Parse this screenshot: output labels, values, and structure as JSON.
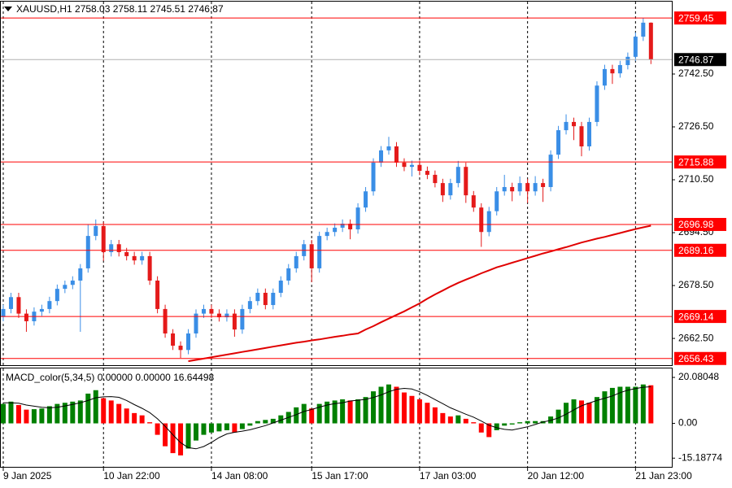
{
  "chart_data": [
    {
      "type": "candlestick",
      "title": "XAUUSD,H1 2758.03 2758.11 2745.51 2746.87",
      "categories": [
        "9 Jan 2025",
        null,
        null,
        null,
        null,
        null,
        null,
        null,
        null,
        null,
        null,
        null,
        null,
        "10 Jan 22:00",
        null,
        null,
        null,
        null,
        null,
        null,
        null,
        null,
        null,
        null,
        null,
        null,
        null,
        "14 Jan 08:00",
        null,
        null,
        null,
        null,
        null,
        null,
        null,
        null,
        null,
        null,
        null,
        null,
        "15 Jan 17:00",
        null,
        null,
        null,
        null,
        null,
        null,
        null,
        null,
        null,
        null,
        null,
        null,
        null,
        "17 Jan 03:00",
        null,
        null,
        null,
        null,
        null,
        null,
        null,
        null,
        null,
        null,
        null,
        null,
        null,
        "20 Jan 12:00",
        null,
        null,
        null,
        null,
        null,
        null,
        null,
        null,
        null,
        null,
        null,
        null,
        null,
        "21 Jan 23:00",
        null,
        null
      ],
      "open": [
        2669.0,
        2671.4,
        2675.0,
        2670.0,
        2667.7,
        2670.6,
        2671.4,
        2673.8,
        2677.5,
        2678.7,
        2680.0,
        2683.7,
        2693.5,
        2696.5,
        2688.6,
        2691.0,
        2688.6,
        2687.4,
        2686.1,
        2687.4,
        2680.0,
        2671.4,
        2664.0,
        2660.3,
        2659.0,
        2664.0,
        2670.0,
        2671.4,
        2670.0,
        2668.9,
        2670.0,
        2665.2,
        2671.4,
        2673.8,
        2676.3,
        2672.6,
        2676.3,
        2680.0,
        2683.7,
        2687.4,
        2691.0,
        2683.7,
        2693.5,
        2694.7,
        2696.0,
        2697.2,
        2695.5,
        2702.1,
        2707.0,
        2715.7,
        2719.4,
        2720.6,
        2715.7,
        2714.4,
        2715.0,
        2713.2,
        2712.0,
        2709.5,
        2705.8,
        2709.5,
        2714.4,
        2705.8,
        2702.1,
        2694.7,
        2701.0,
        2707.0,
        2708.3,
        2707.0,
        2709.5,
        2707.0,
        2709.5,
        2708.3,
        2718.1,
        2725.5,
        2728.0,
        2726.7,
        2720.6,
        2728.0,
        2739.0,
        2744.0,
        2742.7,
        2745.2,
        2747.7,
        2753.8,
        2758.03
      ],
      "high": [
        2672.7,
        2676.3,
        2676.3,
        2671.3,
        2671.9,
        2672.7,
        2675.1,
        2678.8,
        2680.0,
        2681.3,
        2685.0,
        2697.0,
        2698.5,
        2697.8,
        2692.3,
        2692.3,
        2689.9,
        2688.7,
        2688.7,
        2688.7,
        2681.3,
        2672.7,
        2665.3,
        2661.6,
        2665.3,
        2671.3,
        2672.7,
        2672.7,
        2671.3,
        2671.3,
        2671.3,
        2672.7,
        2675.1,
        2677.6,
        2677.6,
        2677.6,
        2681.3,
        2685.0,
        2688.7,
        2692.3,
        2692.3,
        2694.8,
        2696.0,
        2697.3,
        2698.5,
        2698.5,
        2703.4,
        2708.3,
        2717.0,
        2720.7,
        2723.5,
        2721.9,
        2717.0,
        2716.3,
        2716.3,
        2714.5,
        2713.3,
        2710.8,
        2710.8,
        2716.2,
        2715.7,
        2707.1,
        2703.4,
        2702.3,
        2708.3,
        2712.0,
        2709.6,
        2711.5,
        2710.8,
        2711.6,
        2710.8,
        2719.4,
        2726.8,
        2730.3,
        2729.3,
        2728.0,
        2729.3,
        2740.3,
        2745.3,
        2745.3,
        2746.5,
        2749.0,
        2755.1,
        2759.45,
        2758.11
      ],
      "low": [
        2667.7,
        2670.1,
        2668.7,
        2664.5,
        2666.4,
        2669.3,
        2670.1,
        2672.5,
        2676.2,
        2677.4,
        2664.5,
        2682.4,
        2692.2,
        2686.0,
        2687.3,
        2687.3,
        2686.1,
        2684.8,
        2684.8,
        2678.7,
        2670.1,
        2662.7,
        2659.0,
        2656.6,
        2657.7,
        2662.7,
        2668.7,
        2668.7,
        2667.6,
        2667.6,
        2663.0,
        2663.9,
        2670.1,
        2672.5,
        2671.3,
        2671.3,
        2675.0,
        2678.7,
        2682.4,
        2686.1,
        2679.5,
        2682.4,
        2692.2,
        2693.4,
        2694.7,
        2692.5,
        2694.2,
        2700.8,
        2705.7,
        2714.4,
        2718.1,
        2714.4,
        2713.1,
        2711.5,
        2711.9,
        2710.7,
        2708.2,
        2703.8,
        2704.5,
        2708.2,
        2703.5,
        2700.8,
        2690.2,
        2693.4,
        2699.7,
        2705.7,
        2704.0,
        2705.7,
        2703.5,
        2705.7,
        2703.8,
        2707.0,
        2716.8,
        2724.2,
        2722.5,
        2717.6,
        2719.3,
        2726.7,
        2737.7,
        2739.5,
        2741.4,
        2743.9,
        2746.4,
        2752.5,
        2745.51
      ],
      "close": [
        2671.4,
        2675.0,
        2670.0,
        2667.7,
        2670.6,
        2671.4,
        2673.8,
        2677.5,
        2678.7,
        2680.0,
        2683.7,
        2693.5,
        2696.5,
        2688.6,
        2691.0,
        2688.6,
        2687.4,
        2686.1,
        2687.4,
        2680.0,
        2671.4,
        2664.0,
        2660.3,
        2659.0,
        2664.0,
        2670.0,
        2671.4,
        2670.0,
        2668.9,
        2670.0,
        2665.2,
        2671.4,
        2673.8,
        2676.3,
        2672.6,
        2676.3,
        2680.0,
        2683.7,
        2687.4,
        2691.0,
        2683.7,
        2693.5,
        2694.7,
        2696.0,
        2697.2,
        2695.5,
        2702.1,
        2707.0,
        2715.7,
        2719.4,
        2720.6,
        2715.7,
        2714.4,
        2715.0,
        2713.2,
        2712.0,
        2709.5,
        2705.8,
        2709.5,
        2714.4,
        2705.8,
        2702.1,
        2694.7,
        2701.0,
        2707.0,
        2708.3,
        2707.0,
        2709.5,
        2707.0,
        2709.5,
        2708.3,
        2718.1,
        2725.5,
        2728.0,
        2726.7,
        2720.6,
        2728.0,
        2739.0,
        2744.0,
        2742.7,
        2745.2,
        2747.7,
        2753.8,
        2758.03,
        2746.87
      ],
      "up_color": "#3a8ee6",
      "down_color": "#e41a1a",
      "ma": {
        "color": "#e00000",
        "values": [
          null,
          null,
          null,
          null,
          null,
          null,
          null,
          null,
          null,
          null,
          null,
          null,
          null,
          null,
          null,
          null,
          null,
          null,
          null,
          null,
          null,
          null,
          null,
          null,
          2655.6,
          2656.0,
          2656.4,
          2656.8,
          2657.2,
          2657.6,
          2658.0,
          2658.4,
          2658.8,
          2659.2,
          2659.6,
          2660.0,
          2660.4,
          2660.8,
          2661.2,
          2661.5,
          2661.9,
          2662.2,
          2662.6,
          2663.0,
          2663.3,
          2663.7,
          2664.0,
          2665.2,
          2666.2,
          2667.4,
          2668.5,
          2669.6,
          2670.7,
          2671.9,
          2673.1,
          2674.5,
          2675.8,
          2677.0,
          2678.2,
          2679.3,
          2680.3,
          2681.2,
          2682.2,
          2683.1,
          2684.0,
          2684.7,
          2685.4,
          2686.1,
          2686.8,
          2687.5,
          2688.2,
          2688.8,
          2689.5,
          2690.1,
          2690.8,
          2691.5,
          2692.1,
          2692.7,
          2693.2,
          2693.8,
          2694.4,
          2695.0,
          2695.6,
          2696.1,
          2696.6
        ]
      },
      "levels": [
        2759.45,
        2715.88,
        2696.98,
        2689.16,
        2669.14,
        2656.43
      ],
      "level_color": "#ff0000",
      "last_price": 2746.87,
      "ylim": [
        2654.4,
        2764.4
      ],
      "yticks": [
        {
          "value": 2742.5,
          "label": "2742.50"
        },
        {
          "value": 2726.5,
          "label": "2726.50"
        },
        {
          "value": 2710.5,
          "label": "2710.50"
        },
        {
          "value": 2694.5,
          "label": "2694.50"
        },
        {
          "value": 2678.5,
          "label": "2678.50"
        },
        {
          "value": 2662.5,
          "label": "2662.50"
        }
      ],
      "grid": true
    },
    {
      "type": "macd",
      "title": "MACD_color(5,34,5) 0.00000 0.00000 16.64498",
      "values": [
        8.5,
        9.5,
        8,
        6,
        6.2,
        6.5,
        7.5,
        8.5,
        9,
        9.5,
        10,
        13,
        14.5,
        11,
        10,
        8.5,
        6.5,
        4.5,
        3.5,
        0.5,
        -5,
        -10,
        -13,
        -14,
        -11,
        -7.5,
        -5,
        -4,
        -3.5,
        -3,
        -4,
        -2.5,
        -1,
        1,
        1.5,
        2,
        3.5,
        5,
        7,
        8.5,
        6.5,
        8.5,
        9.5,
        10,
        10.5,
        10,
        10.5,
        11.5,
        14,
        16,
        17,
        16,
        13.5,
        12,
        10.5,
        9,
        7,
        4.5,
        3,
        3.5,
        2,
        0.5,
        -4,
        -6,
        -3,
        -1,
        -0.5,
        0.5,
        1,
        1,
        1,
        3,
        6,
        9,
        10.5,
        10,
        9,
        11.5,
        14,
        15.5,
        16,
        16,
        16,
        17,
        16.64498
      ],
      "signal": [
        9,
        9,
        8.8,
        8,
        7.5,
        7,
        6.8,
        7,
        7.6,
        8.3,
        9,
        10,
        11.2,
        11.6,
        11.7,
        11.4,
        10,
        8.2,
        6.6,
        4.7,
        2,
        -1.3,
        -5,
        -8.4,
        -10.6,
        -11.1,
        -10.1,
        -8.3,
        -6.2,
        -4.6,
        -3.9,
        -3.4,
        -2.8,
        -1.9,
        -1,
        0.2,
        1.4,
        2.6,
        3.8,
        5.2,
        6.1,
        7.1,
        8,
        8.6,
        9,
        9.8,
        10.1,
        10.5,
        11.3,
        12.4,
        13.8,
        14.9,
        15.3,
        15,
        13.8,
        12.2,
        10.4,
        8.6,
        6.8,
        5.4,
        4,
        2.7,
        1,
        -0.8,
        -1.9,
        -2.6,
        -2.9,
        -2.2,
        -1.5,
        -0.5,
        0.6,
        1.3,
        2.4,
        4,
        5.9,
        7.7,
        8.9,
        10,
        11,
        12,
        13.4,
        14.5,
        15.2,
        15.8,
        16
      ],
      "up_color": "#008000",
      "down_color": "#ff0000",
      "signal_color": "#000000",
      "ylim": [
        -19.0,
        24.0
      ],
      "yticks": [
        20.08048,
        {
          "value": 0,
          "label": "0.00"
        },
        -15.18774
      ],
      "grid": true
    }
  ]
}
